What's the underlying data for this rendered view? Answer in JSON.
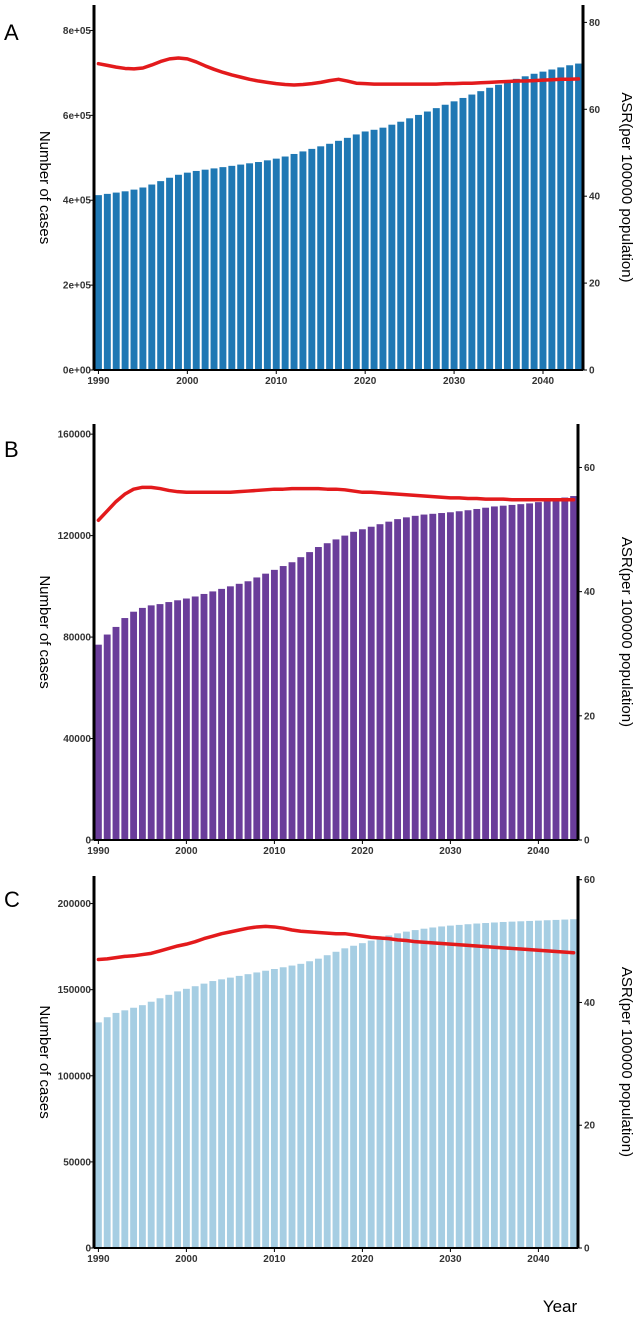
{
  "figure": {
    "shared_xlabel": "Year"
  },
  "chart_data": [
    {
      "type": "bar",
      "panel_label": "A",
      "colors": {
        "bar": "#1f78b4",
        "line": "#e31a1c"
      },
      "x_start": 1990,
      "xlim": [
        1989.5,
        2044.5
      ],
      "x_ticks": [
        1990,
        2000,
        2010,
        2020,
        2030,
        2040
      ],
      "ylabel": "Number of cases",
      "ylabel_right": "ASR(per 100000 population)",
      "ylim": [
        0,
        860000
      ],
      "y_ticks": [
        0,
        200000,
        400000,
        600000,
        800000
      ],
      "y_tick_labels": [
        "0e+00",
        "2e+05",
        "4e+05",
        "6e+05",
        "8e+05"
      ],
      "ylim_right": [
        0,
        84
      ],
      "y2_ticks": [
        0,
        20,
        40,
        60,
        80
      ],
      "values": [
        412000,
        415000,
        418000,
        421000,
        425000,
        430000,
        437000,
        445000,
        453000,
        460000,
        465000,
        469000,
        472000,
        475000,
        478000,
        481000,
        484000,
        487000,
        490000,
        494000,
        498000,
        503000,
        509000,
        515000,
        521000,
        527000,
        533000,
        540000,
        547000,
        555000,
        562000,
        566000,
        571000,
        578000,
        585000,
        593000,
        601000,
        609000,
        617000,
        625000,
        633000,
        641000,
        649000,
        657000,
        665000,
        672000,
        679000,
        686000,
        692000,
        698000,
        703000,
        708000,
        713000,
        718000,
        722000
      ],
      "line_values": [
        70.5,
        70.1,
        69.7,
        69.4,
        69.3,
        69.5,
        70.2,
        71.0,
        71.6,
        71.8,
        71.6,
        70.9,
        70.0,
        69.2,
        68.5,
        67.9,
        67.4,
        66.9,
        66.5,
        66.2,
        65.9,
        65.7,
        65.6,
        65.7,
        65.9,
        66.2,
        66.6,
        66.9,
        66.5,
        66.0,
        65.9,
        65.8,
        65.8,
        65.8,
        65.8,
        65.8,
        65.8,
        65.8,
        65.8,
        65.9,
        65.9,
        66.0,
        66.0,
        66.1,
        66.2,
        66.3,
        66.4,
        66.5,
        66.5,
        66.6,
        66.7,
        66.8,
        66.9,
        66.9,
        67.0
      ]
    },
    {
      "type": "bar",
      "panel_label": "B",
      "colors": {
        "bar": "#6a3d9a",
        "line": "#e31a1c"
      },
      "x_start": 1990,
      "xlim": [
        1989.5,
        2044.5
      ],
      "x_ticks": [
        1990,
        2000,
        2010,
        2020,
        2030,
        2040
      ],
      "ylabel": "Number of cases",
      "ylabel_right": "ASR(per 100000 population)",
      "ylim": [
        0,
        164000
      ],
      "y_ticks": [
        0,
        40000,
        80000,
        120000,
        160000
      ],
      "y_tick_labels": [
        "0",
        "40000",
        "80000",
        "120000",
        "160000"
      ],
      "ylim_right": [
        0,
        67
      ],
      "y2_ticks": [
        0,
        20,
        40,
        60
      ],
      "values": [
        77000,
        81000,
        84000,
        87500,
        90000,
        91500,
        92500,
        93000,
        93800,
        94500,
        95200,
        96000,
        97000,
        98000,
        99000,
        100000,
        101000,
        102000,
        103500,
        105000,
        106500,
        108000,
        109500,
        111500,
        113500,
        115500,
        117000,
        118500,
        120000,
        121500,
        122500,
        123500,
        124500,
        125500,
        126500,
        127200,
        127800,
        128300,
        128600,
        128900,
        129200,
        129600,
        130000,
        130500,
        131000,
        131500,
        131800,
        132100,
        132400,
        132700,
        133200,
        133800,
        134400,
        135000,
        135600
      ],
      "line_values": [
        51.5,
        53.0,
        54.5,
        55.7,
        56.5,
        56.8,
        56.8,
        56.6,
        56.3,
        56.1,
        56.0,
        56.0,
        56.0,
        56.0,
        56.0,
        56.0,
        56.1,
        56.2,
        56.3,
        56.4,
        56.5,
        56.5,
        56.6,
        56.6,
        56.6,
        56.6,
        56.5,
        56.5,
        56.4,
        56.2,
        56.0,
        56.0,
        55.9,
        55.8,
        55.7,
        55.6,
        55.5,
        55.4,
        55.3,
        55.2,
        55.1,
        55.1,
        55.0,
        55.0,
        54.9,
        54.9,
        54.9,
        54.8,
        54.8,
        54.8,
        54.8,
        54.8,
        54.8,
        54.8,
        54.8
      ]
    },
    {
      "type": "bar",
      "panel_label": "C",
      "colors": {
        "bar": "#a6cee3",
        "line": "#e31a1c"
      },
      "x_start": 1990,
      "xlim": [
        1989.5,
        2044.5
      ],
      "x_ticks": [
        1990,
        2000,
        2010,
        2020,
        2030,
        2040
      ],
      "ylabel": "Number of cases",
      "ylabel_right": "ASR(per 100000 population)",
      "ylim": [
        0,
        216000
      ],
      "y_ticks": [
        0,
        50000,
        100000,
        150000,
        200000
      ],
      "y_tick_labels": [
        "0",
        "50000",
        "100000",
        "150000",
        "200000"
      ],
      "ylim_right": [
        0,
        60.6
      ],
      "y2_ticks": [
        0,
        20,
        40,
        60
      ],
      "values": [
        131000,
        134000,
        136500,
        138000,
        139500,
        141000,
        143000,
        145000,
        147000,
        149000,
        150500,
        152000,
        153500,
        155000,
        156000,
        157000,
        158000,
        159000,
        160000,
        161000,
        162000,
        163000,
        164000,
        165000,
        166500,
        168000,
        170000,
        172000,
        174000,
        175500,
        177000,
        178500,
        180000,
        181500,
        182700,
        183700,
        184600,
        185400,
        186100,
        186700,
        187200,
        187600,
        188000,
        188400,
        188700,
        189000,
        189300,
        189500,
        189700,
        189900,
        190100,
        190300,
        190500,
        190700,
        190900
      ],
      "line_values": [
        47.0,
        47.1,
        47.3,
        47.5,
        47.6,
        47.8,
        48.0,
        48.4,
        48.8,
        49.2,
        49.5,
        49.9,
        50.4,
        50.8,
        51.2,
        51.5,
        51.8,
        52.1,
        52.3,
        52.4,
        52.3,
        52.1,
        51.8,
        51.6,
        51.5,
        51.4,
        51.3,
        51.2,
        51.2,
        51.0,
        50.8,
        50.6,
        50.5,
        50.4,
        50.2,
        50.1,
        49.9,
        49.8,
        49.7,
        49.6,
        49.5,
        49.4,
        49.3,
        49.2,
        49.1,
        49.0,
        48.9,
        48.8,
        48.7,
        48.6,
        48.5,
        48.4,
        48.3,
        48.2,
        48.1
      ]
    }
  ]
}
